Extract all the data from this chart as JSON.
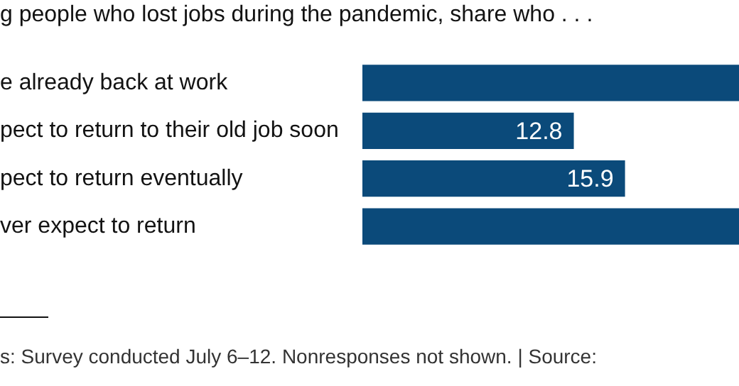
{
  "chart_data": {
    "type": "bar",
    "orientation": "horizontal",
    "title": "g people who lost jobs during the pandemic, share who . . .",
    "categories": [
      "e already back at work",
      "pect to return to their old job soon",
      "pect to return eventually",
      "ver expect to return"
    ],
    "values": [
      22.8,
      12.8,
      15.9,
      22.8
    ],
    "value_labels": [
      null,
      "12.8",
      "15.9",
      null
    ],
    "color": "#0b4a7a",
    "xlim": [
      0,
      22.8
    ],
    "grid": false,
    "legend": false,
    "annotations": [
      "s: Survey conducted July 6–12. Nonresponses not shown. | Source:"
    ]
  }
}
